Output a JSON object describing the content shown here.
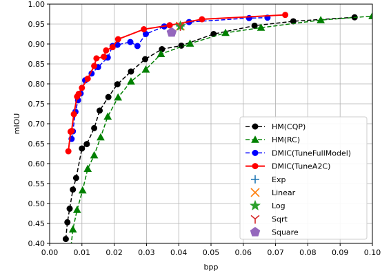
{
  "chart_data": {
    "type": "line",
    "title": "",
    "xlabel": "bpp",
    "ylabel": "mIOU",
    "xlim": [
      0.0,
      0.1
    ],
    "ylim": [
      0.4,
      1.0
    ],
    "xticks": [
      "0.00",
      "0.01",
      "0.02",
      "0.03",
      "0.04",
      "0.05",
      "0.06",
      "0.07",
      "0.08",
      "0.09",
      "0.10"
    ],
    "yticks": [
      "0.40",
      "0.45",
      "0.50",
      "0.55",
      "0.60",
      "0.65",
      "0.70",
      "0.75",
      "0.80",
      "0.85",
      "0.90",
      "0.95",
      "1.00"
    ],
    "xtick_values": [
      0.0,
      0.01,
      0.02,
      0.03,
      0.04,
      0.05,
      0.06,
      0.07,
      0.08,
      0.09,
      0.1
    ],
    "ytick_values": [
      0.4,
      0.45,
      0.5,
      0.55,
      0.6,
      0.65,
      0.7,
      0.75,
      0.8,
      0.85,
      0.9,
      0.95,
      1.0
    ],
    "grid": true,
    "legend_position": "lower-right",
    "series": [
      {
        "name": "HM(CQP)",
        "color": "#000000",
        "linestyle": "dashed",
        "marker": "circle",
        "x": [
          0.005,
          0.0055,
          0.0062,
          0.0072,
          0.0082,
          0.01,
          0.0115,
          0.0138,
          0.0155,
          0.0182,
          0.021,
          0.0252,
          0.0296,
          0.0348,
          0.0408,
          0.0508,
          0.0635,
          0.0755,
          0.0945
        ],
        "y": [
          0.411,
          0.453,
          0.487,
          0.535,
          0.564,
          0.638,
          0.649,
          0.689,
          0.733,
          0.767,
          0.799,
          0.831,
          0.862,
          0.887,
          0.896,
          0.925,
          0.946,
          0.957,
          0.967
        ]
      },
      {
        "name": "HM(RC)",
        "color": "#008000",
        "linestyle": "dashed",
        "marker": "triangle",
        "x": [
          0.0062,
          0.0072,
          0.0085,
          0.0102,
          0.0118,
          0.0138,
          0.0158,
          0.018,
          0.0212,
          0.0252,
          0.0298,
          0.0345,
          0.0435,
          0.0545,
          0.0655,
          0.084,
          0.1
        ],
        "y": [
          0.362,
          0.435,
          0.484,
          0.533,
          0.587,
          0.621,
          0.666,
          0.718,
          0.766,
          0.806,
          0.836,
          0.875,
          0.901,
          0.928,
          0.941,
          0.96,
          0.97
        ]
      },
      {
        "name": "DMIC(TuneFullModel)",
        "color": "#0000ff",
        "linestyle": "dashed",
        "marker": "circle",
        "x": [
          0.0068,
          0.0072,
          0.008,
          0.0088,
          0.0096,
          0.011,
          0.013,
          0.015,
          0.018,
          0.0195,
          0.021,
          0.025,
          0.0272,
          0.0298,
          0.0355,
          0.0372,
          0.0432,
          0.0618,
          0.0675
        ],
        "y": [
          0.662,
          0.681,
          0.73,
          0.759,
          0.776,
          0.809,
          0.826,
          0.842,
          0.866,
          0.895,
          0.898,
          0.905,
          0.895,
          0.925,
          0.944,
          0.947,
          0.955,
          0.965,
          0.966
        ]
      },
      {
        "name": "DMIC(TuneA2C)",
        "color": "#ff0000",
        "linestyle": "solid",
        "marker": "circle",
        "x": [
          0.0058,
          0.0065,
          0.0068,
          0.0075,
          0.0085,
          0.009,
          0.01,
          0.0118,
          0.0138,
          0.0145,
          0.0168,
          0.0175,
          0.0195,
          0.0212,
          0.0292,
          0.0372,
          0.0472,
          0.073
        ],
        "y": [
          0.631,
          0.68,
          0.682,
          0.724,
          0.768,
          0.775,
          0.79,
          0.813,
          0.845,
          0.864,
          0.868,
          0.884,
          0.892,
          0.912,
          0.937,
          0.947,
          0.962,
          0.973
        ]
      }
    ],
    "single_points": [
      {
        "name": "Exp",
        "color": "#1f77b4",
        "marker": "plus",
        "x": 0.0405,
        "y": 0.945
      },
      {
        "name": "Linear",
        "color": "#ff7f0e",
        "marker": "x",
        "x": 0.0405,
        "y": 0.945
      },
      {
        "name": "Log",
        "color": "#2ca02c",
        "marker": "star",
        "x": 0.0405,
        "y": 0.945
      },
      {
        "name": "Sqrt",
        "color": "#d62728",
        "marker": "tri_down",
        "x": 0.0405,
        "y": 0.945
      },
      {
        "name": "Square",
        "color": "#9467bd",
        "marker": "pentagon",
        "x": 0.0378,
        "y": 0.929
      }
    ]
  }
}
